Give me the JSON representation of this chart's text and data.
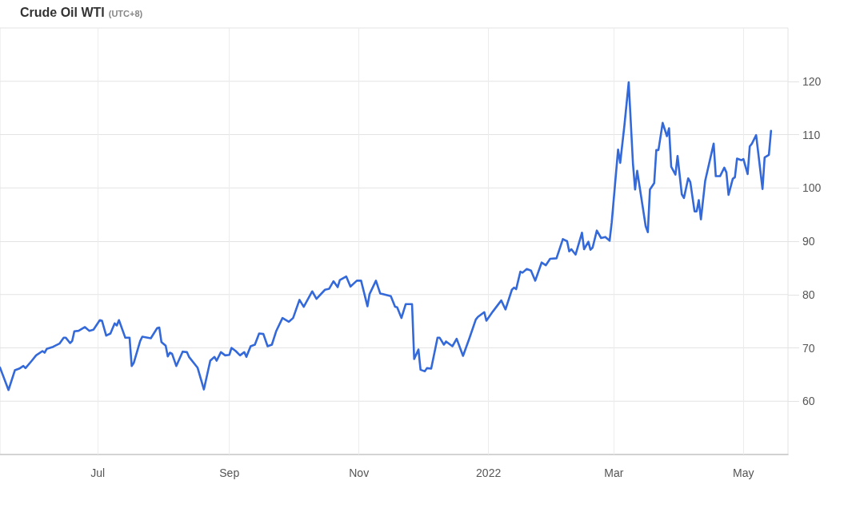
{
  "chart_data": {
    "type": "line",
    "title": "Crude Oil WTI",
    "subtitle": "(UTC+8)",
    "x": [
      "2021-05-16",
      "2021-05-20",
      "2021-05-23",
      "2021-05-25",
      "2021-05-27",
      "2021-05-28",
      "2021-05-31",
      "2021-06-02",
      "2021-06-05",
      "2021-06-06",
      "2021-06-07",
      "2021-06-10",
      "2021-06-13",
      "2021-06-15",
      "2021-06-16",
      "2021-06-18",
      "2021-06-19",
      "2021-06-20",
      "2021-06-22",
      "2021-06-25",
      "2021-06-27",
      "2021-06-29",
      "2021-07-02",
      "2021-07-03",
      "2021-07-05",
      "2021-07-07",
      "2021-07-09",
      "2021-07-10",
      "2021-07-11",
      "2021-07-14",
      "2021-07-16",
      "2021-07-17",
      "2021-07-18",
      "2021-07-21",
      "2021-07-22",
      "2021-07-26",
      "2021-07-29",
      "2021-07-30",
      "2021-07-31",
      "2021-08-02",
      "2021-08-03",
      "2021-08-04",
      "2021-08-05",
      "2021-08-07",
      "2021-08-10",
      "2021-08-12",
      "2021-08-13",
      "2021-08-17",
      "2021-08-20",
      "2021-08-23",
      "2021-08-25",
      "2021-08-26",
      "2021-08-28",
      "2021-08-30",
      "2021-09-01",
      "2021-09-02",
      "2021-09-04",
      "2021-09-06",
      "2021-09-08",
      "2021-09-09",
      "2021-09-11",
      "2021-09-13",
      "2021-09-15",
      "2021-09-17",
      "2021-09-19",
      "2021-09-21",
      "2021-09-23",
      "2021-09-26",
      "2021-09-29",
      "2021-10-01",
      "2021-10-04",
      "2021-10-06",
      "2021-10-10",
      "2021-10-12",
      "2021-10-16",
      "2021-10-18",
      "2021-10-20",
      "2021-10-22",
      "2021-10-23",
      "2021-10-26",
      "2021-10-28",
      "2021-10-31",
      "2021-11-02",
      "2021-11-05",
      "2021-11-06",
      "2021-11-09",
      "2021-11-11",
      "2021-11-12",
      "2021-11-16",
      "2021-11-18",
      "2021-11-19",
      "2021-11-21",
      "2021-11-23",
      "2021-11-26",
      "2021-11-27",
      "2021-11-29",
      "2021-11-30",
      "2021-12-02",
      "2021-12-03",
      "2021-12-05",
      "2021-12-08",
      "2021-12-09",
      "2021-12-11",
      "2021-12-12",
      "2021-12-15",
      "2021-12-17",
      "2021-12-20",
      "2021-12-23",
      "2021-12-26",
      "2021-12-27",
      "2021-12-30",
      "2021-12-31",
      "2022-01-03",
      "2022-01-07",
      "2022-01-09",
      "2022-01-12",
      "2022-01-13",
      "2022-01-14",
      "2022-01-16",
      "2022-01-17",
      "2022-01-19",
      "2022-01-21",
      "2022-01-23",
      "2022-01-26",
      "2022-01-28",
      "2022-01-30",
      "2022-02-02",
      "2022-02-05",
      "2022-02-07",
      "2022-02-08",
      "2022-02-09",
      "2022-02-11",
      "2022-02-14",
      "2022-02-15",
      "2022-02-17",
      "2022-02-18",
      "2022-02-19",
      "2022-02-21",
      "2022-02-23",
      "2022-02-25",
      "2022-02-27",
      "2022-02-28",
      "2022-03-03",
      "2022-03-04",
      "2022-03-06",
      "2022-03-08",
      "2022-03-10",
      "2022-03-11",
      "2022-03-12",
      "2022-03-16",
      "2022-03-17",
      "2022-03-18",
      "2022-03-20",
      "2022-03-21",
      "2022-03-22",
      "2022-03-24",
      "2022-03-26",
      "2022-03-27",
      "2022-03-28",
      "2022-03-30",
      "2022-03-31",
      "2022-04-02",
      "2022-04-03",
      "2022-04-05",
      "2022-04-06",
      "2022-04-08",
      "2022-04-09",
      "2022-04-10",
      "2022-04-11",
      "2022-04-13",
      "2022-04-17",
      "2022-04-18",
      "2022-04-20",
      "2022-04-22",
      "2022-04-23",
      "2022-04-24",
      "2022-04-26",
      "2022-04-27",
      "2022-04-28",
      "2022-04-30",
      "2022-05-01",
      "2022-05-03",
      "2022-05-04",
      "2022-05-05",
      "2022-05-07",
      "2022-05-10",
      "2022-05-11",
      "2022-05-13",
      "2022-05-14"
    ],
    "series": [
      {
        "color": "#3469d9",
        "values": [
          66.3,
          62.1,
          65.8,
          66.1,
          66.6,
          66.2,
          67.6,
          68.6,
          69.4,
          69.1,
          69.8,
          70.2,
          70.8,
          71.9,
          71.9,
          70.9,
          71.3,
          73.1,
          73.2,
          73.9,
          73.2,
          73.4,
          75.2,
          75.1,
          72.3,
          72.7,
          74.6,
          74.2,
          75.2,
          71.9,
          71.9,
          66.6,
          67.2,
          71.3,
          72.1,
          71.8,
          73.7,
          73.8,
          71.1,
          70.4,
          68.4,
          69.1,
          68.9,
          66.6,
          69.3,
          69.2,
          68.3,
          66.3,
          62.2,
          67.6,
          68.3,
          67.6,
          69.2,
          68.6,
          68.7,
          70.0,
          69.4,
          68.6,
          69.2,
          68.3,
          70.3,
          70.6,
          72.7,
          72.6,
          70.3,
          70.6,
          73.1,
          75.6,
          74.9,
          75.6,
          79.0,
          77.7,
          80.6,
          79.2,
          80.9,
          81.1,
          82.5,
          81.4,
          82.7,
          83.4,
          81.5,
          82.6,
          82.6,
          77.8,
          80.1,
          82.6,
          80.2,
          80.1,
          79.7,
          77.7,
          77.6,
          75.6,
          78.2,
          78.2,
          67.9,
          69.7,
          65.9,
          65.6,
          66.2,
          66.1,
          71.9,
          71.9,
          70.6,
          71.2,
          70.3,
          71.7,
          68.5,
          71.8,
          75.3,
          75.8,
          76.7,
          75.1,
          76.8,
          78.9,
          77.2,
          80.9,
          81.3,
          81.0,
          84.3,
          84.1,
          84.8,
          84.5,
          82.6,
          86.0,
          85.5,
          86.7,
          86.8,
          90.4,
          90.0,
          88.1,
          88.5,
          87.5,
          91.6,
          88.5,
          89.9,
          88.4,
          88.8,
          92.0,
          90.6,
          90.8,
          90.1,
          93.5,
          107.2,
          104.7,
          111.8,
          119.8,
          104.6,
          99.7,
          103.2,
          92.8,
          91.7,
          99.7,
          100.9,
          107.1,
          107.1,
          112.2,
          109.7,
          111.2,
          104.0,
          102.5,
          106.0,
          98.8,
          98.1,
          101.8,
          101.1,
          95.6,
          95.6,
          97.7,
          94.1,
          101.3,
          108.3,
          102.2,
          102.2,
          103.8,
          102.9,
          98.7,
          101.7,
          102.0,
          105.5,
          105.2,
          105.4,
          102.6,
          107.8,
          108.3,
          109.9,
          99.8,
          105.7,
          106.2,
          110.7
        ]
      }
    ],
    "xlim": [
      "2021-05-16",
      "2022-05-22"
    ],
    "xticks": [
      {
        "value": "2021-07-01",
        "label": "Jul"
      },
      {
        "value": "2021-09-01",
        "label": "Sep"
      },
      {
        "value": "2021-11-01",
        "label": "Nov"
      },
      {
        "value": "2022-01-01",
        "label": "2022"
      },
      {
        "value": "2022-03-01",
        "label": "Mar"
      },
      {
        "value": "2022-05-01",
        "label": "May"
      }
    ],
    "ylim": [
      50,
      130
    ],
    "yticks": [
      60,
      70,
      80,
      90,
      100,
      110,
      120
    ],
    "grid": true
  }
}
